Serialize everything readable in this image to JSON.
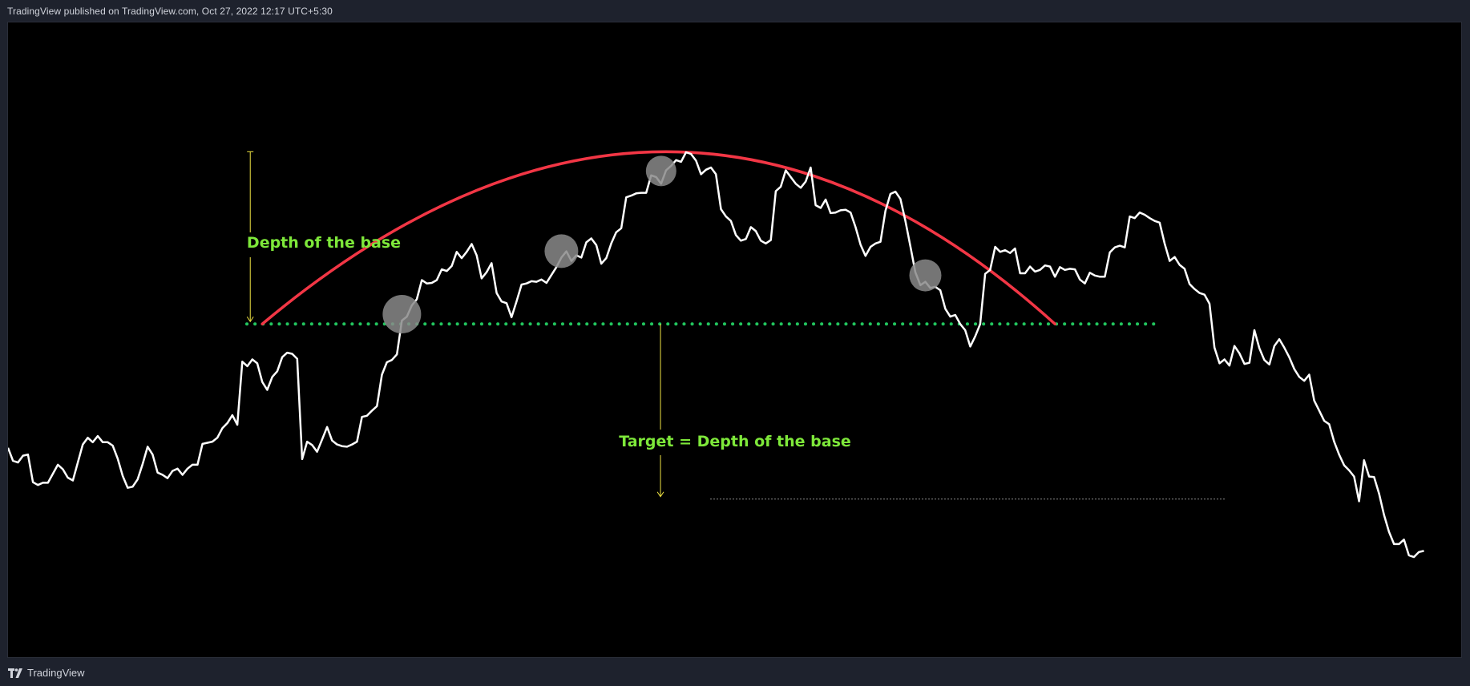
{
  "header": {
    "published_text": "TradingView published on TradingView.com, Oct 27, 2022 12:17 UTC+5:30"
  },
  "footer": {
    "brand_text": "TradingView"
  },
  "colors": {
    "price_line": "#ffffff",
    "arc": "#f23645",
    "neckline": "#22c55e",
    "measure": "#f0e442",
    "annotation_text": "#7ee83a",
    "touch_circle": "#8a8a8a"
  },
  "annotations": {
    "depth_label": "Depth of the base",
    "target_label": "Target = Depth of the base"
  },
  "chart_data": {
    "type": "line",
    "title": "",
    "xlabel": "",
    "ylabel": "",
    "x_axis_shown": false,
    "y_axis_shown": false,
    "grid": false,
    "legend": "none",
    "note_units": "no axes printed; y values are relative price levels (0 = chart bottom, 100 = chart top)",
    "ylim": [
      0,
      100
    ],
    "series": [
      {
        "values": [
          27.5,
          25.2,
          24.9,
          26.1,
          26.3,
          21.4,
          20.9,
          21.3,
          21.3,
          22.9,
          24.5,
          23.7,
          22.2,
          21.7,
          24.9,
          28.1,
          29.3,
          28.5,
          29.6,
          28.5,
          28.5,
          27.9,
          25.6,
          22.5,
          20.4,
          20.6,
          21.9,
          24.6,
          27.7,
          26.3,
          23.1,
          22.7,
          22.1,
          23.4,
          23.8,
          22.7,
          23.8,
          24.5,
          24.5,
          28.2,
          28.4,
          28.6,
          29.3,
          31.0,
          31.9,
          33.3,
          31.6,
          42.8,
          42.0,
          43.2,
          42.5,
          39.2,
          37.8,
          40.1,
          41.1,
          43.6,
          44.4,
          44.2,
          43.3,
          25.5,
          28.6,
          28.0,
          26.8,
          29.0,
          31.2,
          28.8,
          28.1,
          27.8,
          27.7,
          28.1,
          28.6,
          33.0,
          33.2,
          34.1,
          34.9,
          40.5,
          42.7,
          43.1,
          44.1,
          50.1,
          50.8,
          52.8,
          53.9,
          57.3,
          56.7,
          56.8,
          57.3,
          59.2,
          58.9,
          59.8,
          62.3,
          61.2,
          62.3,
          63.7,
          61.7,
          57.6,
          58.7,
          60.3,
          55.0,
          53.5,
          53.2,
          50.7,
          53.5,
          56.5,
          56.7,
          57.1,
          57.0,
          57.4,
          56.8,
          58.2,
          59.6,
          61.3,
          62.4,
          60.7,
          61.7,
          61.3,
          64.0,
          64.7,
          63.5,
          60.2,
          61.2,
          63.8,
          65.8,
          66.5,
          72.0,
          72.3,
          72.7,
          72.8,
          72.8,
          75.9,
          75.6,
          74.4,
          76.8,
          77.6,
          78.6,
          78.3,
          80.0,
          79.7,
          78.5,
          76.1,
          76.9,
          77.3,
          76.1,
          69.9,
          68.6,
          67.8,
          65.3,
          64.3,
          64.6,
          66.7,
          66.0,
          64.3,
          63.8,
          64.4,
          73.1,
          73.9,
          76.8,
          75.6,
          74.4,
          73.7,
          74.8,
          77.3,
          70.6,
          70.1,
          71.6,
          69.2,
          69.3,
          69.7,
          69.8,
          69.3,
          66.7,
          63.6,
          61.6,
          63.2,
          63.8,
          64.1,
          69.6,
          72.6,
          73.0,
          71.7,
          67.8,
          63.3,
          58.7,
          56.4,
          57.0,
          55.9,
          56.1,
          55.5,
          52.2,
          50.8,
          51.1,
          49.5,
          48.4,
          45.5,
          47.3,
          49.5,
          58.4,
          59.1,
          63.2,
          62.3,
          62.6,
          62.1,
          62.9,
          58.5,
          58.5,
          59.7,
          58.8,
          59.1,
          59.9,
          59.7,
          57.9,
          59.6,
          59.1,
          59.3,
          59.2,
          57.4,
          56.7,
          58.6,
          58.1,
          57.9,
          57.9,
          62.2,
          63.1,
          63.4,
          63.1,
          68.6,
          68.3,
          69.3,
          68.9,
          68.3,
          67.8,
          67.5,
          63.8,
          60.7,
          61.4,
          60.0,
          59.3,
          56.6,
          55.7,
          55.0,
          54.7,
          53.1,
          45.3,
          42.5,
          43.2,
          42.1,
          45.6,
          44.3,
          42.4,
          42.6,
          48.4,
          45.2,
          43.1,
          42.3,
          45.6,
          46.8,
          45.3,
          43.6,
          41.5,
          40.1,
          39.4,
          40.5,
          35.9,
          34.1,
          32.3,
          31.7,
          28.6,
          26.3,
          24.4,
          23.5,
          22.4,
          18.0,
          25.3,
          22.4,
          22.3,
          19.4,
          15.6,
          12.6,
          10.4,
          10.4,
          11.2,
          8.4,
          8.1,
          9.0,
          9.2
        ]
      }
    ],
    "overlays": {
      "neckline_level": 49.5,
      "target_level": 18.4,
      "arc_start": [
        51,
        49.5
      ],
      "arc_peak": [
        132,
        80.1
      ],
      "arc_end": [
        210,
        49.5
      ],
      "touch_points": [
        79,
        111,
        131,
        184
      ],
      "depth_measure_x": 51,
      "depth_measure_top": 80.1,
      "target_measure_x": 132
    }
  }
}
